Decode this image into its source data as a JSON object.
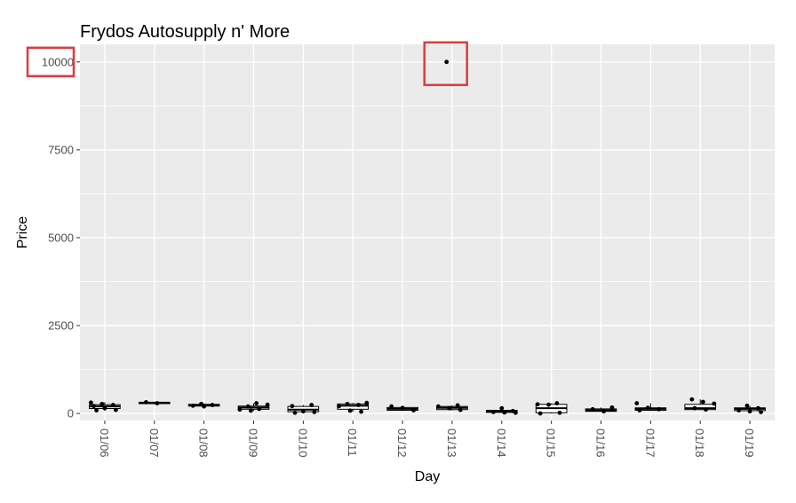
{
  "chart_data": {
    "type": "boxplot",
    "title": "Frydos Autosupply n' More",
    "xlabel": "Day",
    "ylabel": "Price",
    "ylim": [
      -200,
      10500
    ],
    "yticks": [
      0,
      2500,
      5000,
      7500,
      10000
    ],
    "ytick_labels": [
      "0",
      "2500",
      "5000",
      "7500",
      "10000"
    ],
    "categories": [
      "01/06",
      "01/07",
      "01/08",
      "01/09",
      "01/10",
      "01/11",
      "01/12",
      "01/13",
      "01/14",
      "01/15",
      "01/16",
      "01/17",
      "01/18",
      "01/19"
    ],
    "boxes": [
      {
        "min": 80,
        "q1": 140,
        "median": 200,
        "q3": 250,
        "max": 320
      },
      {
        "min": 260,
        "q1": 280,
        "median": 300,
        "q3": 320,
        "max": 330
      },
      {
        "min": 180,
        "q1": 210,
        "median": 240,
        "q3": 260,
        "max": 280
      },
      {
        "min": 70,
        "q1": 120,
        "median": 170,
        "q3": 210,
        "max": 290
      },
      {
        "min": 20,
        "q1": 50,
        "median": 110,
        "q3": 200,
        "max": 240
      },
      {
        "min": 50,
        "q1": 120,
        "median": 220,
        "q3": 270,
        "max": 300
      },
      {
        "min": 70,
        "q1": 90,
        "median": 130,
        "q3": 170,
        "max": 200
      },
      {
        "min": 80,
        "q1": 110,
        "median": 160,
        "q3": 200,
        "max": 230
      },
      {
        "min": 20,
        "q1": 30,
        "median": 60,
        "q3": 90,
        "max": 150
      },
      {
        "min": 0,
        "q1": 20,
        "median": 150,
        "q3": 260,
        "max": 290
      },
      {
        "min": 50,
        "q1": 60,
        "median": 90,
        "q3": 130,
        "max": 170
      },
      {
        "min": 70,
        "q1": 90,
        "median": 130,
        "q3": 160,
        "max": 290
      },
      {
        "min": 90,
        "q1": 110,
        "median": 150,
        "q3": 260,
        "max": 400
      },
      {
        "min": 40,
        "q1": 80,
        "median": 130,
        "q3": 160,
        "max": 220
      }
    ],
    "points": [
      {
        "day": "01/06",
        "values": [
          310,
          270,
          240,
          210,
          150,
          100,
          90
        ]
      },
      {
        "day": "01/07",
        "values": [
          320,
          290
        ]
      },
      {
        "day": "01/08",
        "values": [
          270,
          240,
          220,
          200
        ]
      },
      {
        "day": "01/09",
        "values": [
          290,
          250,
          200,
          130,
          110,
          80
        ]
      },
      {
        "day": "01/10",
        "values": [
          240,
          210,
          60,
          40,
          20
        ]
      },
      {
        "day": "01/11",
        "values": [
          300,
          270,
          240,
          210,
          80,
          50
        ]
      },
      {
        "day": "01/12",
        "values": [
          200,
          160,
          90
        ]
      },
      {
        "day": "01/13",
        "values": [
          10000,
          230,
          200,
          150,
          100
        ]
      },
      {
        "day": "01/14",
        "values": [
          150,
          70,
          40,
          30,
          20
        ]
      },
      {
        "day": "01/15",
        "values": [
          290,
          260,
          250,
          20,
          0
        ]
      },
      {
        "day": "01/16",
        "values": [
          170,
          120,
          60
        ]
      },
      {
        "day": "01/17",
        "values": [
          290,
          160,
          120,
          90
        ]
      },
      {
        "day": "01/18",
        "values": [
          400,
          330,
          280,
          150,
          110
        ]
      },
      {
        "day": "01/19",
        "values": [
          220,
          150,
          90,
          60,
          40
        ]
      }
    ],
    "outlier_highlight_day": "01/13",
    "grid": true,
    "colors": {
      "panel_bg": "#ebebeb",
      "grid": "#ffffff",
      "box_fill": "#ffffff",
      "box_stroke": "#000000",
      "points": "#000000",
      "highlight": "#e0393e"
    }
  }
}
